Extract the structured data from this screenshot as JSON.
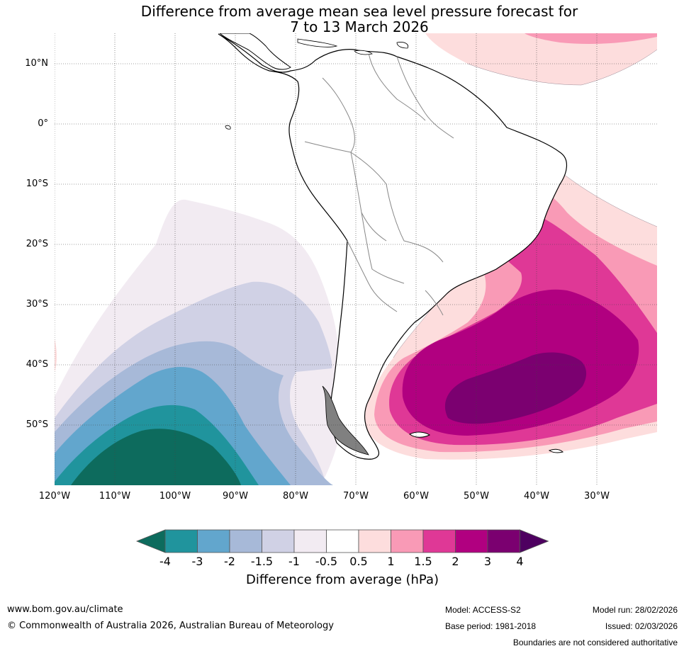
{
  "title": {
    "line1": "Difference from average mean sea level pressure forecast for",
    "line2": "7 to 13 March 2026"
  },
  "map": {
    "lat_labels": [
      "10°N",
      "0°",
      "10°S",
      "20°S",
      "30°S",
      "40°S",
      "50°S"
    ],
    "lon_labels": [
      "120°W",
      "110°W",
      "100°W",
      "90°W",
      "80°W",
      "70°W",
      "60°W",
      "50°W",
      "40°W",
      "30°W"
    ],
    "extent": {
      "lon": [
        -120,
        -20
      ],
      "lat": [
        -60,
        15
      ]
    },
    "units": "hPa"
  },
  "colorbar": {
    "tick_labels": [
      "-4",
      "-3",
      "-2",
      "-1.5",
      "-1",
      "-0.5",
      "0.5",
      "1",
      "1.5",
      "2",
      "3",
      "4"
    ],
    "colors": [
      "#0d6b5d",
      "#20949d",
      "#62a6cd",
      "#a7b9d8",
      "#d0d1e5",
      "#f2ebf2",
      "#ffffff",
      "#fddddd",
      "#f99ab6",
      "#df3896",
      "#b10080",
      "#7b0070",
      "#4e0060"
    ],
    "title": "Difference from average (hPa)"
  },
  "footer": {
    "url": "www.bom.gov.au/climate",
    "copyright": "© Commonwealth of Australia 2026, Australian Bureau of Meteorology",
    "model": "Model: ACCESS-S2",
    "base_period": "Base period: 1981-2018",
    "model_run": "Model run: 28/02/2026",
    "issued": "Issued: 02/03/2026",
    "disclaimer": "Boundaries are not considered authoritative"
  }
}
